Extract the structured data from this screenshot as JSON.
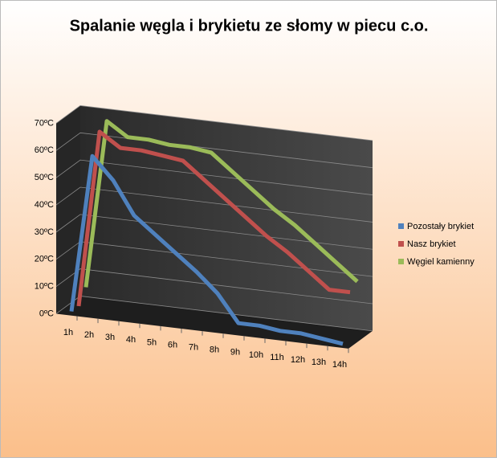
{
  "chart_data": {
    "type": "line3d",
    "title": "Spalanie węgla i brykietu ze słomy w piecu c.o.",
    "categories": [
      "1h",
      "2h",
      "3h",
      "4h",
      "5h",
      "6h",
      "7h",
      "8h",
      "9h",
      "10h",
      "11h",
      "12h",
      "13h",
      "14h"
    ],
    "series": [
      {
        "name": "Pozostały brykiet",
        "color": "#4f81bd",
        "values": [
          0,
          58,
          50,
          38,
          32,
          26,
          20,
          13,
          3,
          3,
          2,
          2,
          1,
          0
        ]
      },
      {
        "name": "Nasz brykiet",
        "color": "#c0504d",
        "values": [
          0,
          65,
          60,
          60,
          59,
          58,
          52,
          46,
          40,
          34,
          29,
          23,
          17,
          17
        ]
      },
      {
        "name": "Węgiel kamienny",
        "color": "#9bbb59",
        "values": [
          5,
          67,
          62,
          62,
          61,
          61,
          60,
          54,
          48,
          42,
          37,
          31,
          25,
          19
        ]
      }
    ],
    "ylim": [
      0,
      70
    ],
    "yticks": [
      {
        "value": 0,
        "label": "0ºC"
      },
      {
        "value": 10,
        "label": "10ºC"
      },
      {
        "value": 20,
        "label": "20ºC"
      },
      {
        "value": 30,
        "label": "30ºC"
      },
      {
        "value": 40,
        "label": "40ºC"
      },
      {
        "value": 50,
        "label": "50ºC"
      },
      {
        "value": 60,
        "label": "60ºC"
      },
      {
        "value": 70,
        "label": "70ºC"
      }
    ],
    "grid": true,
    "legend": "right"
  }
}
